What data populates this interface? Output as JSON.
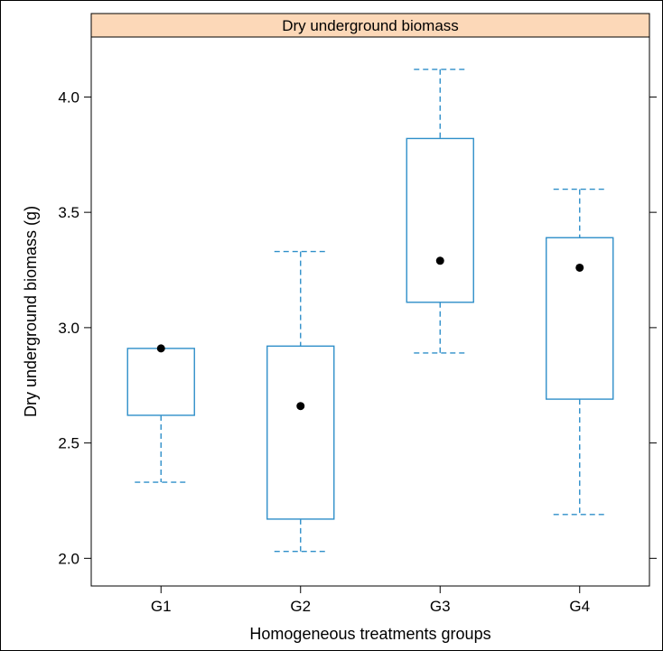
{
  "chart_data": {
    "type": "boxplot",
    "strip_title": "Dry underground biomass",
    "xlabel": "Homogeneous treatments groups",
    "ylabel": "Dry underground biomass (g)",
    "ylim": [
      1.88,
      4.26
    ],
    "y_ticks": [
      2.0,
      2.5,
      3.0,
      3.5,
      4.0
    ],
    "y_tick_labels": [
      "2.0",
      "2.5",
      "3.0",
      "3.5",
      "4.0"
    ],
    "categories": [
      "G1",
      "G2",
      "G3",
      "G4"
    ],
    "boxes": [
      {
        "label": "G1",
        "whisker_low": 2.33,
        "q1": 2.62,
        "median": 2.91,
        "q3": 2.91,
        "whisker_high": 2.91
      },
      {
        "label": "G2",
        "whisker_low": 2.03,
        "q1": 2.17,
        "median": 2.66,
        "q3": 2.92,
        "whisker_high": 3.33
      },
      {
        "label": "G3",
        "whisker_low": 2.89,
        "q1": 3.11,
        "median": 3.29,
        "q3": 3.82,
        "whisker_high": 4.12
      },
      {
        "label": "G4",
        "whisker_low": 2.19,
        "q1": 2.69,
        "median": 3.26,
        "q3": 3.39,
        "whisker_high": 3.6
      }
    ],
    "colors": {
      "box": "#2f8fc9",
      "median_dot": "#000000",
      "strip_fill": "#fcd8b8",
      "axis": "#000000"
    },
    "grid": false
  }
}
